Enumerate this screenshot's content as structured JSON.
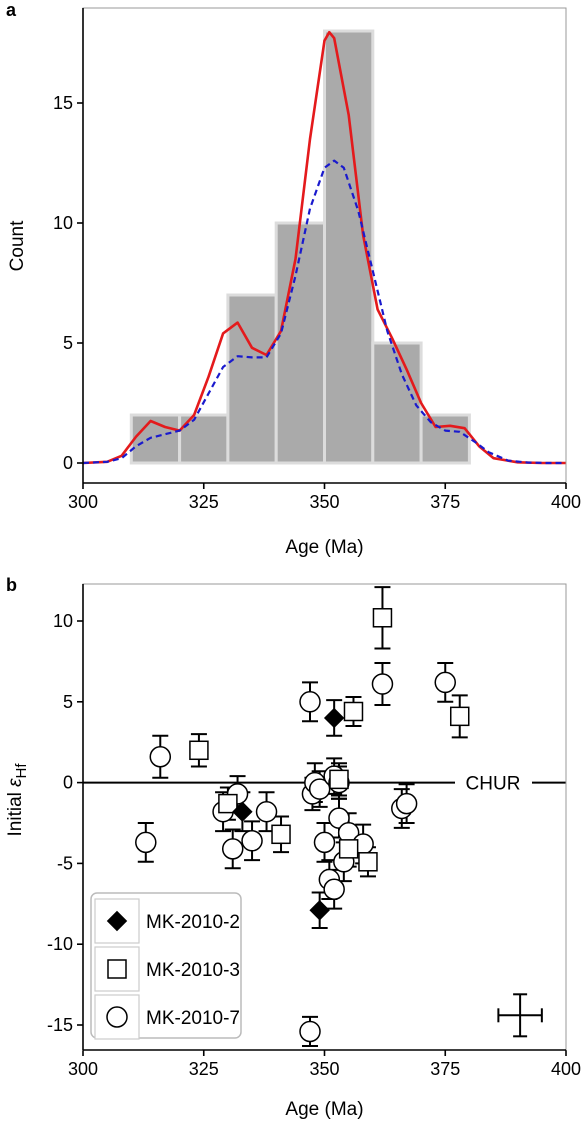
{
  "chart_data": [
    {
      "panel": "a",
      "type": "bar",
      "xlabel": "Age (Ma)",
      "ylabel": "Count",
      "xlim": [
        300,
        400
      ],
      "ylim": [
        0,
        18.5
      ],
      "xticks": [
        300,
        325,
        350,
        375,
        400
      ],
      "yticks": [
        0,
        5,
        10,
        15
      ],
      "bins": [
        {
          "x0": 310,
          "x1": 320,
          "count": 2
        },
        {
          "x0": 320,
          "x1": 330,
          "count": 2
        },
        {
          "x0": 330,
          "x1": 340,
          "count": 7
        },
        {
          "x0": 340,
          "x1": 350,
          "count": 10
        },
        {
          "x0": 350,
          "x1": 360,
          "count": 18
        },
        {
          "x0": 360,
          "x1": 370,
          "count": 5
        },
        {
          "x0": 370,
          "x1": 380,
          "count": 2
        }
      ],
      "curves": [
        {
          "color": "#e41a1c",
          "style": "solid",
          "x": [
            300,
            305,
            308,
            311,
            314,
            317,
            320,
            323,
            326,
            329,
            332,
            335,
            338,
            341,
            344,
            347,
            350,
            351,
            352,
            355,
            358,
            361,
            364,
            367,
            370,
            373,
            376,
            379,
            382,
            385,
            390,
            395,
            400
          ],
          "y": [
            0,
            0.05,
            0.3,
            1.1,
            1.75,
            1.5,
            1.35,
            2.0,
            3.6,
            5.4,
            5.85,
            4.8,
            4.5,
            5.5,
            8.5,
            13.5,
            17.6,
            17.95,
            17.7,
            14.5,
            9.5,
            6.4,
            5.2,
            3.9,
            2.5,
            1.5,
            1.55,
            1.45,
            0.7,
            0.2,
            0.03,
            0,
            0
          ]
        },
        {
          "color": "#1a1acd",
          "style": "dashed",
          "x": [
            300,
            305,
            308,
            311,
            314,
            317,
            320,
            323,
            326,
            329,
            332,
            335,
            338,
            341,
            344,
            347,
            350,
            352,
            354,
            357,
            360,
            363,
            366,
            369,
            372,
            375,
            378,
            381,
            384,
            388,
            392,
            396,
            400
          ],
          "y": [
            0,
            0.05,
            0.2,
            0.7,
            1.05,
            1.2,
            1.35,
            1.8,
            2.9,
            4.0,
            4.45,
            4.4,
            4.4,
            5.4,
            7.8,
            10.6,
            12.3,
            12.6,
            12.3,
            10.5,
            8.0,
            5.5,
            3.7,
            2.4,
            1.7,
            1.35,
            1.3,
            0.9,
            0.45,
            0.1,
            0.02,
            0,
            0
          ]
        }
      ]
    },
    {
      "panel": "b",
      "type": "scatter",
      "xlabel": "Age (Ma)",
      "ylabel_main": "Initial ",
      "ylabel_symbol": "ε",
      "ylabel_sub": "Hf",
      "xlim": [
        300,
        400
      ],
      "ylim": [
        -17,
        13.8
      ],
      "xticks": [
        300,
        325,
        350,
        375,
        400
      ],
      "yticks": [
        -15,
        -10,
        -5,
        0,
        5,
        10
      ],
      "reference_line": {
        "y": 0,
        "label": "CHUR"
      },
      "legend": {
        "placement": "bottom-left",
        "entries": [
          {
            "label": "MK-2010-2",
            "marker": "diamond"
          },
          {
            "label": "MK-2010-3",
            "marker": "square"
          },
          {
            "label": "MK-2010-7",
            "marker": "circle"
          }
        ]
      },
      "error_bar_example": {
        "x": 390.5,
        "y": -14.4,
        "xerr": 4.5,
        "yerr": 1.3
      },
      "series": [
        {
          "name": "MK-2010-2",
          "marker": "diamond",
          "points": [
            {
              "x": 333,
              "y": -1.8,
              "yerr": 1.2
            },
            {
              "x": 349,
              "y": -7.9,
              "yerr": 1.1
            },
            {
              "x": 352,
              "y": 4.0,
              "yerr": 1.1
            }
          ]
        },
        {
          "name": "MK-2010-3",
          "marker": "square",
          "points": [
            {
              "x": 324,
              "y": 2.0,
              "yerr": 1.0
            },
            {
              "x": 330,
              "y": -1.3,
              "yerr": 1.0
            },
            {
              "x": 341,
              "y": -3.2,
              "yerr": 1.1
            },
            {
              "x": 353,
              "y": 0.2,
              "yerr": 1.0
            },
            {
              "x": 355,
              "y": -4.1,
              "yerr": 1.1
            },
            {
              "x": 356,
              "y": 4.4,
              "yerr": 0.9
            },
            {
              "x": 359,
              "y": -4.9,
              "yerr": 0.9
            },
            {
              "x": 362,
              "y": 10.2,
              "yerr": 1.9
            },
            {
              "x": 378,
              "y": 4.1,
              "yerr": 1.3
            }
          ]
        },
        {
          "name": "MK-2010-7",
          "marker": "circle",
          "points": [
            {
              "x": 313,
              "y": -3.7,
              "yerr": 1.2
            },
            {
              "x": 316,
              "y": 1.6,
              "yerr": 1.3
            },
            {
              "x": 329,
              "y": -1.8,
              "yerr": 1.2
            },
            {
              "x": 331,
              "y": -4.1,
              "yerr": 1.2
            },
            {
              "x": 332,
              "y": -0.7,
              "yerr": 1.1
            },
            {
              "x": 335,
              "y": -3.6,
              "yerr": 1.2
            },
            {
              "x": 338,
              "y": -1.8,
              "yerr": 1.2
            },
            {
              "x": 347,
              "y": 5.0,
              "yerr": 1.2
            },
            {
              "x": 347,
              "y": -15.4,
              "yerr": 0.9
            },
            {
              "x": 347.5,
              "y": -0.7,
              "yerr": 1.0
            },
            {
              "x": 348,
              "y": 0.0,
              "yerr": 1.2
            },
            {
              "x": 349,
              "y": -0.4,
              "yerr": 1.1
            },
            {
              "x": 350,
              "y": -3.7,
              "yerr": 1.2
            },
            {
              "x": 351,
              "y": -6.0,
              "yerr": 1.2
            },
            {
              "x": 352,
              "y": -6.6,
              "yerr": 1.2
            },
            {
              "x": 352,
              "y": 0.4,
              "yerr": 1.1
            },
            {
              "x": 353,
              "y": 0.0,
              "yerr": 1.0
            },
            {
              "x": 353,
              "y": -2.2,
              "yerr": 1.2
            },
            {
              "x": 354,
              "y": -4.9,
              "yerr": 1.2
            },
            {
              "x": 355,
              "y": -3.1,
              "yerr": 1.2
            },
            {
              "x": 358,
              "y": -3.8,
              "yerr": 1.2
            },
            {
              "x": 362,
              "y": 6.1,
              "yerr": 1.3
            },
            {
              "x": 366,
              "y": -1.6,
              "yerr": 1.2
            },
            {
              "x": 367,
              "y": -1.3,
              "yerr": 1.2
            },
            {
              "x": 375,
              "y": 6.2,
              "yerr": 1.2
            }
          ]
        }
      ]
    }
  ]
}
